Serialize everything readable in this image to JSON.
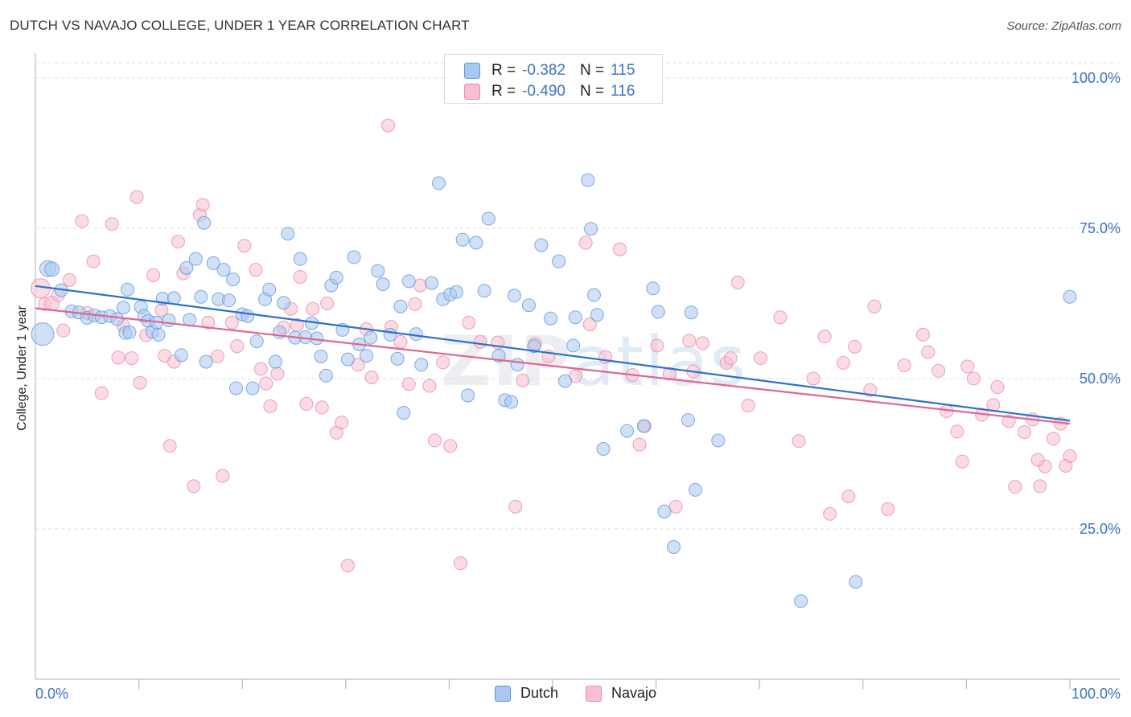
{
  "title": "DUTCH VS NAVAJO COLLEGE, UNDER 1 YEAR CORRELATION CHART",
  "source": "Source: ZipAtlas.com",
  "watermark": {
    "bold": "ZIP",
    "light": "atlas"
  },
  "legend_top": [
    {
      "r_label": "R =",
      "r_value": "-0.382",
      "n_label": "N =",
      "n_value": "115"
    },
    {
      "r_label": "R =",
      "r_value": "-0.490",
      "n_label": "N =",
      "n_value": "116"
    }
  ],
  "legend_bottom": [
    "Dutch",
    "Navajo"
  ],
  "colors": {
    "dutch_fill": "#a9c8f0",
    "dutch_stroke": "#5f97d8",
    "dutch_line": "#2d6fcf",
    "navajo_fill": "#f8bfd0",
    "navajo_stroke": "#e98aa8",
    "navajo_line": "#e0668f",
    "tick_label": "#3b73c4",
    "grid": "#dddddd"
  },
  "chart_data": {
    "type": "scatter",
    "title": "DUTCH VS NAVAJO COLLEGE, UNDER 1 YEAR CORRELATION CHART",
    "xlabel": "",
    "ylabel": "College, Under 1 year",
    "xlim": [
      0,
      100
    ],
    "ylim": [
      0,
      102
    ],
    "x_tick_labels": [
      "0.0%",
      "100.0%"
    ],
    "y_ticks": [
      25,
      50,
      75,
      100
    ],
    "y_tick_labels": [
      "25.0%",
      "50.0%",
      "75.0%",
      "100.0%"
    ],
    "grid": "dashed horizontal",
    "legend_placement": "top-center and bottom",
    "series": [
      {
        "name": "Dutch",
        "r": -0.382,
        "n": 115,
        "trend": {
          "x": [
            0,
            100
          ],
          "y": [
            65.4,
            43.0
          ]
        },
        "points": [
          [
            0.7,
            57.4,
            14
          ],
          [
            1.2,
            68.3,
            10
          ],
          [
            1.6,
            68.2,
            9
          ],
          [
            2.5,
            64.7,
            8
          ],
          [
            3.5,
            61.2,
            8
          ],
          [
            4.2,
            61.0,
            8
          ],
          [
            5.0,
            60.1,
            8
          ],
          [
            5.7,
            60.5,
            8
          ],
          [
            6.4,
            60.2,
            8
          ],
          [
            7.2,
            60.4,
            8
          ],
          [
            7.9,
            59.9,
            8
          ],
          [
            8.5,
            61.8,
            8
          ],
          [
            8.7,
            57.6,
            8
          ],
          [
            8.9,
            64.8,
            8
          ],
          [
            9.1,
            57.7,
            8
          ],
          [
            10.2,
            61.9,
            8
          ],
          [
            10.5,
            60.4,
            8
          ],
          [
            10.9,
            59.6,
            8
          ],
          [
            11.3,
            57.8,
            8
          ],
          [
            11.7,
            59.3,
            8
          ],
          [
            11.9,
            57.3,
            8
          ],
          [
            12.3,
            63.3,
            8
          ],
          [
            12.9,
            59.7,
            8
          ],
          [
            13.4,
            63.4,
            8
          ],
          [
            14.1,
            53.9,
            8
          ],
          [
            14.6,
            68.4,
            8
          ],
          [
            14.9,
            59.8,
            8
          ],
          [
            15.5,
            69.9,
            8
          ],
          [
            16.0,
            63.6,
            8
          ],
          [
            16.3,
            75.9,
            8
          ],
          [
            16.5,
            52.8,
            8
          ],
          [
            17.2,
            69.2,
            8
          ],
          [
            17.7,
            63.2,
            8
          ],
          [
            18.2,
            68.1,
            8
          ],
          [
            18.7,
            63.0,
            8
          ],
          [
            19.1,
            66.5,
            8
          ],
          [
            19.4,
            48.4,
            8
          ],
          [
            20.0,
            60.7,
            8
          ],
          [
            20.5,
            60.4,
            8
          ],
          [
            21.0,
            48.4,
            8
          ],
          [
            21.4,
            56.2,
            8
          ],
          [
            22.2,
            63.2,
            8
          ],
          [
            22.6,
            64.8,
            8
          ],
          [
            23.2,
            52.8,
            8
          ],
          [
            23.6,
            57.7,
            8
          ],
          [
            24.0,
            62.6,
            8
          ],
          [
            24.4,
            74.1,
            8
          ],
          [
            25.1,
            56.8,
            8
          ],
          [
            25.6,
            69.9,
            8
          ],
          [
            26.1,
            56.9,
            8
          ],
          [
            26.7,
            59.2,
            8
          ],
          [
            27.2,
            56.7,
            8
          ],
          [
            27.6,
            53.7,
            8
          ],
          [
            28.1,
            50.5,
            8
          ],
          [
            28.6,
            65.5,
            8
          ],
          [
            29.1,
            66.8,
            8
          ],
          [
            29.7,
            58.1,
            8
          ],
          [
            30.2,
            53.2,
            8
          ],
          [
            30.8,
            70.2,
            8
          ],
          [
            31.3,
            55.7,
            8
          ],
          [
            32.0,
            53.8,
            8
          ],
          [
            32.4,
            56.8,
            8
          ],
          [
            33.1,
            67.9,
            8
          ],
          [
            33.6,
            65.7,
            8
          ],
          [
            34.3,
            57.3,
            8
          ],
          [
            35.0,
            53.3,
            8
          ],
          [
            35.3,
            62.0,
            8
          ],
          [
            35.6,
            44.3,
            8
          ],
          [
            36.1,
            66.2,
            8
          ],
          [
            36.8,
            57.4,
            8
          ],
          [
            37.3,
            52.3,
            8
          ],
          [
            38.3,
            65.9,
            8
          ],
          [
            39.0,
            82.5,
            8
          ],
          [
            39.4,
            63.2,
            8
          ],
          [
            40.1,
            64.0,
            8
          ],
          [
            40.7,
            64.4,
            8
          ],
          [
            41.3,
            73.1,
            8
          ],
          [
            41.8,
            47.2,
            8
          ],
          [
            42.6,
            72.6,
            8
          ],
          [
            43.4,
            64.6,
            8
          ],
          [
            43.8,
            76.6,
            8
          ],
          [
            44.8,
            53.8,
            8
          ],
          [
            45.4,
            46.4,
            8
          ],
          [
            46.0,
            46.1,
            8
          ],
          [
            46.3,
            63.8,
            8
          ],
          [
            46.6,
            52.3,
            8
          ],
          [
            47.7,
            62.2,
            8
          ],
          [
            48.2,
            55.4,
            8
          ],
          [
            48.9,
            72.2,
            8
          ],
          [
            49.8,
            60.0,
            8
          ],
          [
            50.6,
            69.5,
            8
          ],
          [
            51.2,
            49.6,
            8
          ],
          [
            52.0,
            55.5,
            8
          ],
          [
            52.2,
            60.2,
            8
          ],
          [
            53.4,
            83.0,
            8
          ],
          [
            53.7,
            74.9,
            8
          ],
          [
            54.0,
            63.9,
            8
          ],
          [
            54.3,
            60.6,
            8
          ],
          [
            54.9,
            38.3,
            8
          ],
          [
            57.2,
            41.3,
            8
          ],
          [
            58.8,
            42.1,
            8
          ],
          [
            59.7,
            65.0,
            8
          ],
          [
            60.2,
            61.1,
            8
          ],
          [
            60.8,
            27.9,
            8
          ],
          [
            61.7,
            22.0,
            8
          ],
          [
            63.1,
            43.1,
            8
          ],
          [
            63.4,
            61.0,
            8
          ],
          [
            63.8,
            31.5,
            8
          ],
          [
            66.0,
            39.7,
            8
          ],
          [
            74.0,
            13.0,
            8
          ],
          [
            79.3,
            16.2,
            8
          ],
          [
            100.0,
            63.6,
            8
          ]
        ]
      },
      {
        "name": "Navajo",
        "r": -0.49,
        "n": 116,
        "trend": {
          "x": [
            0,
            100
          ],
          "y": [
            61.7,
            42.5
          ]
        },
        "points": [
          [
            0.5,
            65.0,
            12
          ],
          [
            0.9,
            62.4,
            8
          ],
          [
            1.6,
            62.5,
            9
          ],
          [
            2.2,
            63.9,
            8
          ],
          [
            2.7,
            58.0,
            8
          ],
          [
            3.3,
            66.4,
            8
          ],
          [
            4.5,
            76.2,
            8
          ],
          [
            5.0,
            60.9,
            8
          ],
          [
            5.6,
            69.5,
            8
          ],
          [
            6.4,
            47.6,
            8
          ],
          [
            7.4,
            75.7,
            8
          ],
          [
            8.0,
            53.5,
            8
          ],
          [
            8.5,
            58.8,
            8
          ],
          [
            9.3,
            53.4,
            8
          ],
          [
            9.8,
            80.2,
            8
          ],
          [
            10.1,
            49.3,
            8
          ],
          [
            10.7,
            57.2,
            8
          ],
          [
            11.4,
            67.2,
            8
          ],
          [
            12.2,
            61.4,
            8
          ],
          [
            12.5,
            53.8,
            8
          ],
          [
            13.0,
            38.8,
            8
          ],
          [
            13.4,
            52.8,
            8
          ],
          [
            13.8,
            72.8,
            8
          ],
          [
            14.3,
            67.5,
            8
          ],
          [
            15.3,
            32.1,
            8
          ],
          [
            15.9,
            77.2,
            8
          ],
          [
            16.2,
            78.9,
            8
          ],
          [
            16.7,
            59.3,
            8
          ],
          [
            17.6,
            53.7,
            8
          ],
          [
            18.1,
            33.8,
            8
          ],
          [
            19.0,
            59.3,
            8
          ],
          [
            19.5,
            55.4,
            8
          ],
          [
            20.2,
            72.1,
            8
          ],
          [
            21.3,
            68.1,
            8
          ],
          [
            21.8,
            51.6,
            8
          ],
          [
            22.3,
            49.2,
            8
          ],
          [
            22.7,
            45.4,
            8
          ],
          [
            23.4,
            50.8,
            8
          ],
          [
            24.0,
            58.5,
            8
          ],
          [
            24.7,
            61.6,
            8
          ],
          [
            25.3,
            58.9,
            8
          ],
          [
            25.6,
            66.9,
            8
          ],
          [
            26.2,
            45.8,
            8
          ],
          [
            26.8,
            61.6,
            8
          ],
          [
            27.7,
            45.2,
            8
          ],
          [
            28.2,
            62.5,
            8
          ],
          [
            29.1,
            41.0,
            8
          ],
          [
            29.6,
            42.7,
            8
          ],
          [
            30.2,
            18.9,
            8
          ],
          [
            31.2,
            52.3,
            8
          ],
          [
            32.0,
            58.2,
            8
          ],
          [
            32.5,
            50.2,
            8
          ],
          [
            34.1,
            92.1,
            8
          ],
          [
            34.4,
            58.6,
            8
          ],
          [
            35.3,
            56.1,
            8
          ],
          [
            36.1,
            49.1,
            8
          ],
          [
            36.7,
            62.4,
            8
          ],
          [
            37.2,
            65.5,
            8
          ],
          [
            38.1,
            48.8,
            8
          ],
          [
            38.6,
            39.7,
            8
          ],
          [
            39.4,
            52.7,
            8
          ],
          [
            40.1,
            38.8,
            8
          ],
          [
            41.1,
            19.3,
            8
          ],
          [
            41.9,
            59.3,
            8
          ],
          [
            43.0,
            56.1,
            8
          ],
          [
            44.7,
            56.0,
            8
          ],
          [
            46.4,
            28.7,
            8
          ],
          [
            47.1,
            49.7,
            8
          ],
          [
            48.3,
            55.8,
            8
          ],
          [
            49.6,
            53.7,
            8
          ],
          [
            52.2,
            50.4,
            8
          ],
          [
            53.2,
            72.6,
            8
          ],
          [
            53.6,
            59.0,
            8
          ],
          [
            55.1,
            53.6,
            8
          ],
          [
            56.5,
            71.5,
            8
          ],
          [
            57.7,
            50.6,
            8
          ],
          [
            58.4,
            39.0,
            8
          ],
          [
            58.9,
            42.1,
            8
          ],
          [
            60.1,
            55.5,
            8
          ],
          [
            61.3,
            50.8,
            8
          ],
          [
            61.9,
            28.7,
            8
          ],
          [
            63.2,
            56.3,
            8
          ],
          [
            63.6,
            51.2,
            8
          ],
          [
            64.5,
            55.9,
            8
          ],
          [
            66.8,
            52.6,
            8
          ],
          [
            67.2,
            53.4,
            8
          ],
          [
            67.9,
            66.0,
            8
          ],
          [
            68.9,
            45.5,
            8
          ],
          [
            70.1,
            53.4,
            8
          ],
          [
            72.0,
            60.2,
            8
          ],
          [
            73.8,
            39.6,
            8
          ],
          [
            75.2,
            50.0,
            8
          ],
          [
            76.3,
            57.0,
            8
          ],
          [
            76.8,
            27.5,
            8
          ],
          [
            78.1,
            52.6,
            8
          ],
          [
            78.6,
            30.4,
            8
          ],
          [
            79.2,
            55.3,
            8
          ],
          [
            80.7,
            48.1,
            8
          ],
          [
            81.1,
            62.0,
            8
          ],
          [
            82.4,
            28.3,
            8
          ],
          [
            84.0,
            52.2,
            8
          ],
          [
            85.8,
            57.3,
            8
          ],
          [
            86.3,
            54.4,
            8
          ],
          [
            87.3,
            51.3,
            8
          ],
          [
            88.1,
            44.6,
            8
          ],
          [
            89.1,
            41.2,
            8
          ],
          [
            89.6,
            36.2,
            8
          ],
          [
            90.1,
            52.0,
            8
          ],
          [
            90.7,
            50.0,
            8
          ],
          [
            91.5,
            44.0,
            8
          ],
          [
            92.6,
            45.6,
            8
          ],
          [
            93.0,
            48.6,
            8
          ],
          [
            94.1,
            42.9,
            8
          ],
          [
            94.7,
            32.0,
            8
          ],
          [
            95.6,
            41.1,
            8
          ],
          [
            96.4,
            43.2,
            8
          ],
          [
            97.1,
            32.1,
            8
          ],
          [
            97.6,
            35.4,
            8
          ],
          [
            98.4,
            40.0,
            8
          ],
          [
            99.1,
            42.5,
            8
          ],
          [
            99.6,
            35.5,
            8
          ],
          [
            100.0,
            37.1,
            8
          ],
          [
            96.9,
            36.5,
            8
          ]
        ]
      }
    ]
  }
}
